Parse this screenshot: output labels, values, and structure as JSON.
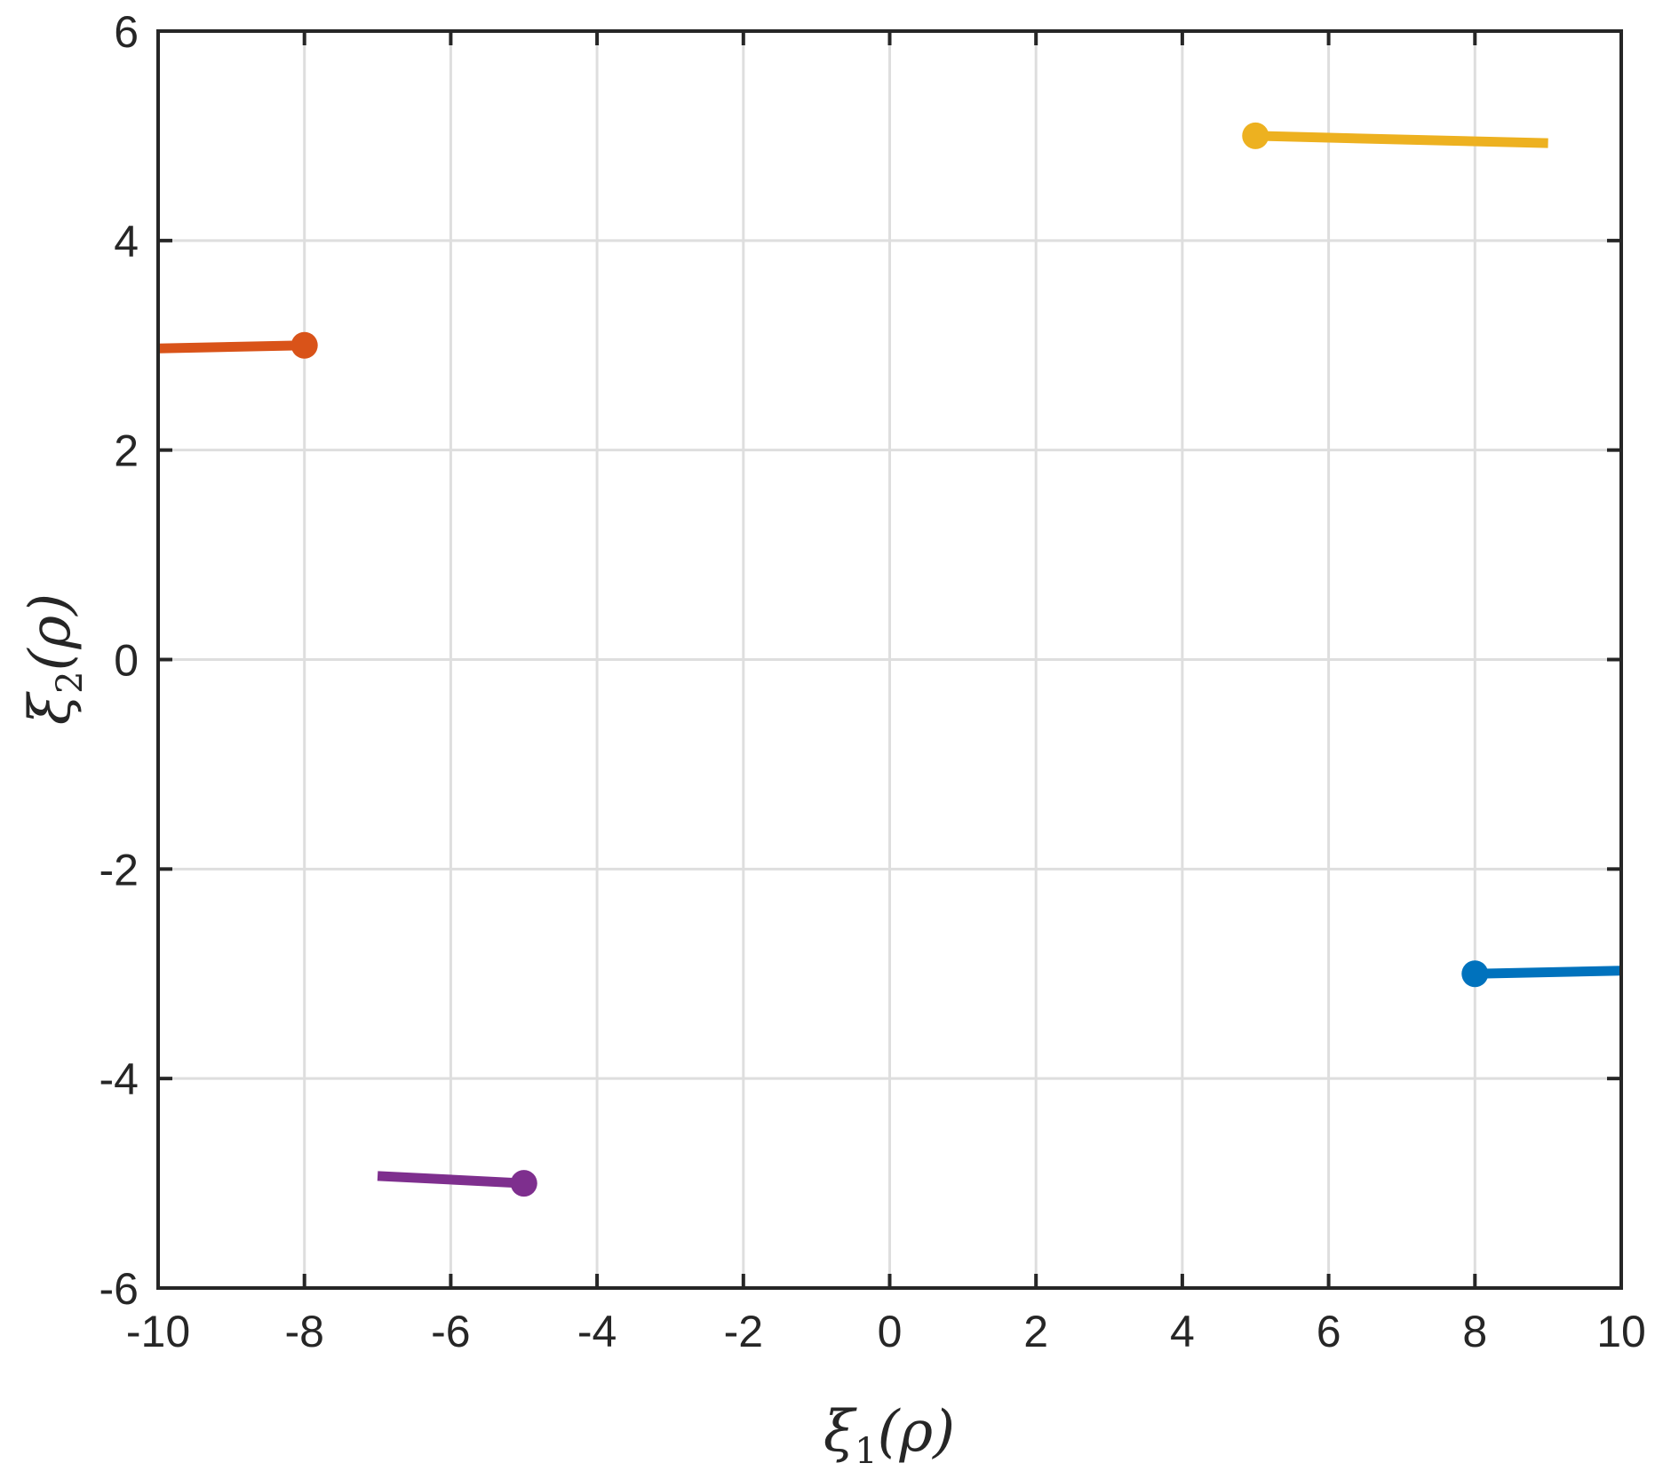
{
  "chart_data": {
    "type": "line",
    "title": "",
    "xlabel": "ξ1(ρ)",
    "ylabel": "ξ2(ρ)",
    "xlabel_parts": {
      "base": "ξ",
      "sub": "1",
      "arg": "(ρ)"
    },
    "ylabel_parts": {
      "base": "ξ",
      "sub": "2",
      "arg": "(ρ)"
    },
    "xlim": [
      -10,
      10
    ],
    "ylim": [
      -6,
      6
    ],
    "xticks": [
      -10,
      -8,
      -6,
      -4,
      -2,
      0,
      2,
      4,
      6,
      8,
      10
    ],
    "yticks": [
      -6,
      -4,
      -2,
      0,
      2,
      4,
      6
    ],
    "xtick_labels": [
      "-10",
      "-8",
      "-6",
      "-4",
      "-2",
      "0",
      "2",
      "4",
      "6",
      "8",
      "10"
    ],
    "ytick_labels": [
      "-6",
      "-4",
      "-2",
      "0",
      "2",
      "4",
      "6"
    ],
    "grid": true,
    "legend": false,
    "series": [
      {
        "color": "#0072BD",
        "x": [
          8,
          10
        ],
        "y": [
          -3,
          -2.97
        ],
        "marker": {
          "x": 8,
          "y": -3
        }
      },
      {
        "color": "#D95319",
        "x": [
          -10,
          -8
        ],
        "y": [
          2.97,
          3
        ],
        "marker": {
          "x": -8,
          "y": 3
        }
      },
      {
        "color": "#EDB120",
        "x": [
          5,
          9
        ],
        "y": [
          5,
          4.93
        ],
        "marker": {
          "x": 5,
          "y": 5
        }
      },
      {
        "color": "#7E2F8E",
        "x": [
          -7,
          -5
        ],
        "y": [
          -4.93,
          -5
        ],
        "marker": {
          "x": -5,
          "y": -5
        }
      }
    ]
  }
}
